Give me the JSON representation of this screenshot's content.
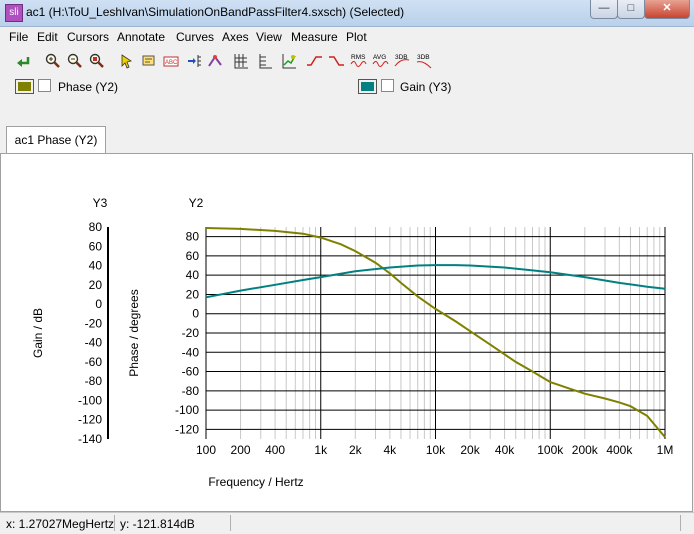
{
  "window": {
    "app_icon_text": "sli",
    "title": "ac1 (H:\\ToU_LeshIvan\\SimulationOnBandPassFilter4.sxsch) (Selected)"
  },
  "menu": [
    "File",
    "Edit",
    "Cursors",
    "Annotate",
    "Curves",
    "Axes",
    "View",
    "Measure",
    "Plot"
  ],
  "toolbar": {
    "rms_label": "RMS",
    "avg_label": "AVG",
    "db3a_label": "3DB",
    "db3b_label": "3DB",
    "icons": [
      "undo-arrow-icon",
      "zoom-in-icon",
      "zoom-out-icon",
      "zoom-full-icon",
      "cursor-icon",
      "annotate-icon",
      "abc-icon",
      "add-axis-icon",
      "curve-style-icon",
      "grid-icon",
      "tick-icon",
      "graph-icon",
      "rise-icon",
      "fall-icon",
      "rms-icon",
      "avg-icon",
      "3db-low-icon",
      "3db-high-icon"
    ]
  },
  "legend": [
    {
      "label": "Phase (Y2)",
      "color": "#808000"
    },
    {
      "label": "Gain (Y3)",
      "color": "#008080"
    }
  ],
  "tab": {
    "label": "ac1 Phase (Y2)"
  },
  "chart_data": {
    "type": "line",
    "xlabel": "Frequency / Hertz",
    "x_scale": "log",
    "xlim": [
      100,
      1000000
    ],
    "x_ticks": [
      {
        "value": 100,
        "label": "100"
      },
      {
        "value": 200,
        "label": "200"
      },
      {
        "value": 400,
        "label": "400"
      },
      {
        "value": 1000,
        "label": "1k"
      },
      {
        "value": 2000,
        "label": "2k"
      },
      {
        "value": 4000,
        "label": "4k"
      },
      {
        "value": 10000,
        "label": "10k"
      },
      {
        "value": 20000,
        "label": "20k"
      },
      {
        "value": 40000,
        "label": "40k"
      },
      {
        "value": 100000,
        "label": "100k"
      },
      {
        "value": 200000,
        "label": "200k"
      },
      {
        "value": 400000,
        "label": "400k"
      },
      {
        "value": 1000000,
        "label": "1M"
      }
    ],
    "y2": {
      "title": "Y2",
      "label": "Phase / degrees",
      "ylim": [
        -130,
        90
      ],
      "ticks": [
        80,
        60,
        40,
        20,
        0,
        -20,
        -40,
        -60,
        -80,
        -100,
        -120
      ]
    },
    "y3": {
      "title": "Y3",
      "label": "Gain / dB",
      "ylim": [
        -140,
        80
      ],
      "ticks": [
        80,
        60,
        40,
        20,
        0,
        -20,
        -40,
        -60,
        -80,
        -100,
        -120,
        -140
      ]
    },
    "grid": true,
    "series": [
      {
        "name": "Phase (Y2)",
        "axis": "y2",
        "color": "#808000",
        "x": [
          100,
          200,
          400,
          700,
          1000,
          1500,
          2000,
          3000,
          4000,
          5000,
          7000,
          10000,
          15000,
          20000,
          30000,
          50000,
          70000,
          100000,
          150000,
          200000,
          300000,
          400000,
          500000,
          700000,
          1000000
        ],
        "y": [
          89,
          88,
          86,
          83,
          79,
          72,
          65,
          53,
          42,
          32,
          18,
          5,
          -8,
          -18,
          -32,
          -50,
          -60,
          -71,
          -78,
          -83,
          -88,
          -92,
          -96,
          -106,
          -128
        ]
      },
      {
        "name": "Gain (Y3)",
        "axis": "y3",
        "color": "#008080",
        "x": [
          100,
          200,
          400,
          700,
          1000,
          2000,
          4000,
          7000,
          10000,
          15000,
          20000,
          40000,
          70000,
          100000,
          200000,
          400000,
          700000,
          1000000
        ],
        "y": [
          7,
          14,
          20,
          25,
          28,
          34,
          38,
          40,
          40.5,
          40.5,
          40,
          38,
          35,
          33,
          28,
          22,
          18,
          16
        ]
      }
    ]
  },
  "status": {
    "x_text": "x: 1.27027MegHertz",
    "y_text": "y: -121.814dB"
  }
}
